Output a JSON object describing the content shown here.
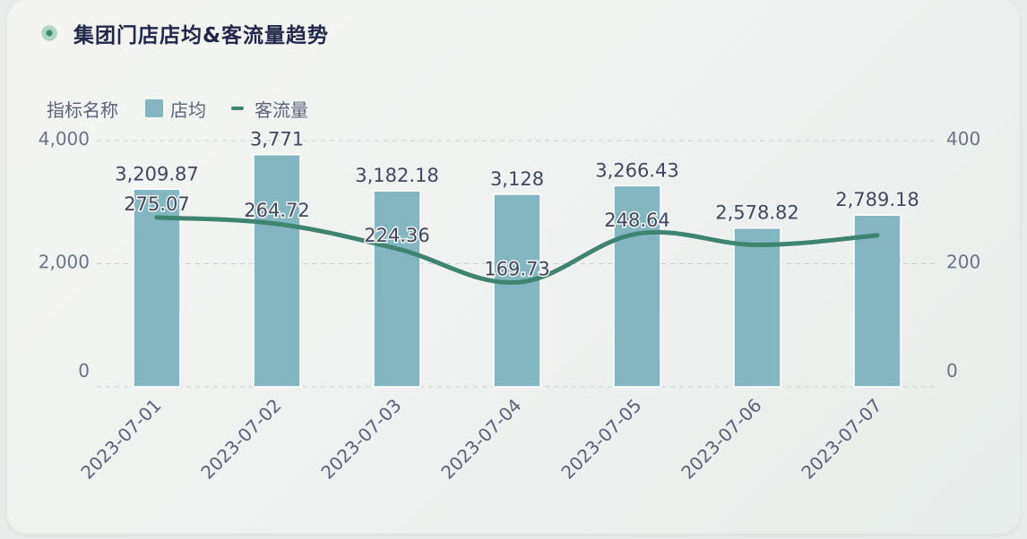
{
  "title": "集团门店店均&客流量趋势",
  "legend": {
    "title": "指标名称",
    "bar_label": "店均",
    "line_label": "客流量"
  },
  "colors": {
    "bar": "#84b6c2",
    "line": "#3e8470",
    "grid": "#c9d0d2",
    "text": "#41475e"
  },
  "chart_data": {
    "type": "bar",
    "title": "集团门店店均&客流量趋势",
    "categories": [
      "2023-07-01",
      "2023-07-02",
      "2023-07-03",
      "2023-07-04",
      "2023-07-05",
      "2023-07-06",
      "2023-07-07"
    ],
    "series": [
      {
        "name": "店均",
        "type": "bar",
        "axis": "left",
        "values": [
          3209.87,
          3771,
          3182.18,
          3128,
          3266.43,
          2578.82,
          2789.18
        ],
        "labels": [
          "3,209.87",
          "3,771",
          "3,182.18",
          "3,128",
          "3,266.43",
          "2,578.82",
          "2,789.18"
        ]
      },
      {
        "name": "客流量",
        "type": "line",
        "axis": "right",
        "smooth": true,
        "values": [
          275.07,
          264.72,
          224.36,
          169.73,
          248.64,
          230.5,
          246.0
        ],
        "labels": [
          "275.07",
          "264.72",
          "224.36",
          "169.73",
          "248.64",
          "",
          ""
        ]
      }
    ],
    "left_axis": {
      "ylim": [
        0,
        4000
      ],
      "ticks": [
        0,
        2000,
        4000
      ],
      "tick_labels": [
        "0",
        "2,000",
        "4,000"
      ]
    },
    "right_axis": {
      "ylim": [
        0,
        400
      ],
      "ticks": [
        0,
        200,
        400
      ],
      "tick_labels": [
        "0",
        "200",
        "400"
      ]
    },
    "grid": true,
    "legend_position": "top-left"
  }
}
